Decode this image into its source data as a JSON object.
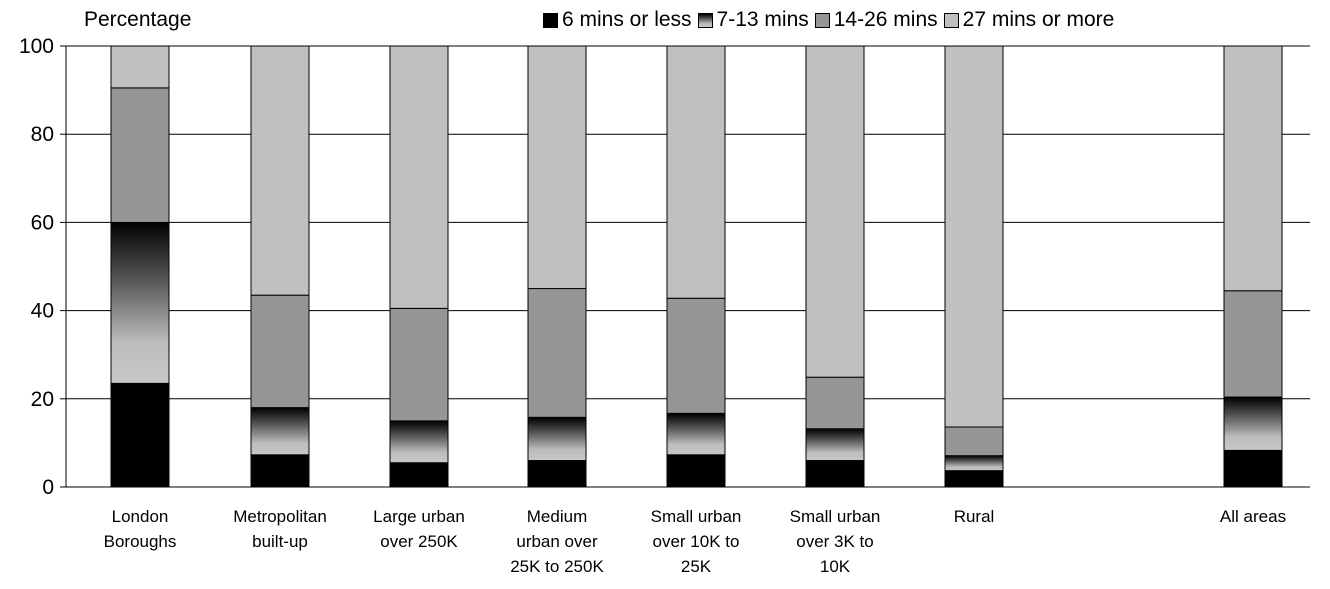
{
  "chart_data": {
    "type": "bar",
    "stacked": true,
    "ylabel": "Percentage",
    "ylim": [
      0,
      100
    ],
    "yticks": [
      0,
      20,
      40,
      60,
      80,
      100
    ],
    "grid": true,
    "legend_position": "top-right",
    "categories": [
      [
        "London",
        "Boroughs"
      ],
      [
        "Metropolitan",
        "built-up"
      ],
      [
        "Large urban",
        "over 250K"
      ],
      [
        "Medium",
        "urban over",
        "25K to 250K"
      ],
      [
        "Small urban",
        "over 10K to",
        "25K"
      ],
      [
        "Small urban",
        "over 3K to",
        "10K"
      ],
      [
        "Rural"
      ],
      [
        "All areas"
      ]
    ],
    "series": [
      {
        "name": "6 mins or less",
        "color": "#000000",
        "fill": "solid",
        "values": [
          23.5,
          7.3,
          5.5,
          6.0,
          7.3,
          6.0,
          3.7,
          8.3
        ]
      },
      {
        "name": "7-13 mins",
        "color": "#9a9a9a",
        "fill": "gradient",
        "values": [
          36.5,
          10.7,
          9.5,
          9.8,
          9.4,
          7.2,
          3.4,
          12.1
        ]
      },
      {
        "name": "14-26 mins",
        "color": "#969696",
        "fill": "solid",
        "values": [
          30.5,
          25.5,
          25.5,
          29.2,
          26.1,
          11.7,
          6.5,
          24.1
        ]
      },
      {
        "name": "27 mins or more",
        "color": "#c0c0c0",
        "fill": "solid",
        "values": [
          9.5,
          56.5,
          59.5,
          55.0,
          57.2,
          75.1,
          86.4,
          55.5
        ]
      }
    ]
  }
}
